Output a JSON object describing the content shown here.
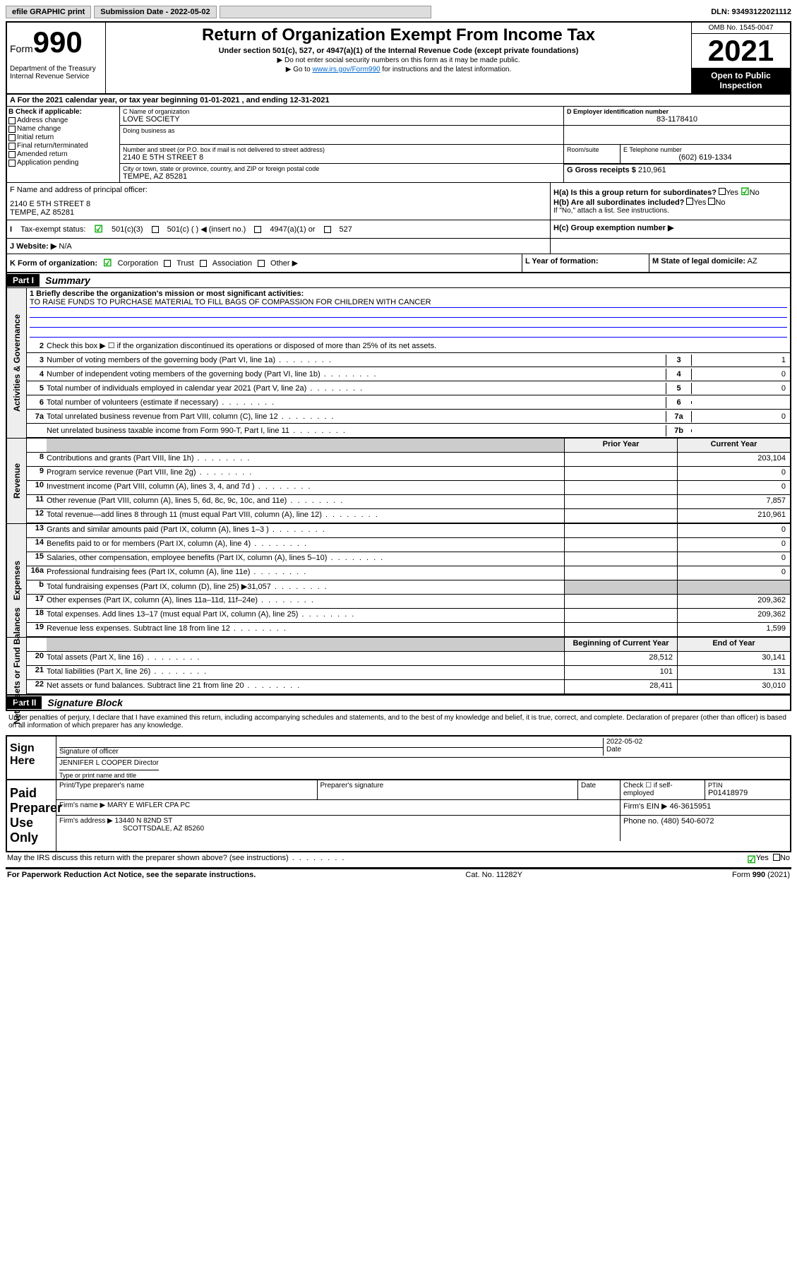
{
  "topbar": {
    "efile": "efile GRAPHIC print",
    "submission_label": "Submission Date - 2022-05-02",
    "dln": "DLN: 93493122021112"
  },
  "header": {
    "form_prefix": "Form",
    "form_number": "990",
    "dept": "Department of the Treasury Internal Revenue Service",
    "title": "Return of Organization Exempt From Income Tax",
    "subtitle": "Under section 501(c), 527, or 4947(a)(1) of the Internal Revenue Code (except private foundations)",
    "note1": "▶ Do not enter social security numbers on this form as it may be made public.",
    "note2_pre": "▶ Go to ",
    "note2_link": "www.irs.gov/Form990",
    "note2_post": " for instructions and the latest information.",
    "omb": "OMB No. 1545-0047",
    "year": "2021",
    "open": "Open to Public Inspection"
  },
  "line_a": {
    "text": "A For the 2021 calendar year, or tax year beginning 01-01-2021   , and ending 12-31-2021"
  },
  "section_b": {
    "label": "B Check if applicable:",
    "opts": [
      "Address change",
      "Name change",
      "Initial return",
      "Final return/terminated",
      "Amended return",
      "Application pending"
    ]
  },
  "section_c": {
    "name_label": "C Name of organization",
    "name": "LOVE SOCIETY",
    "dba_label": "Doing business as",
    "addr_label": "Number and street (or P.O. box if mail is not delivered to street address)",
    "room_label": "Room/suite",
    "addr": "2140 E 5TH STREET 8",
    "city_label": "City or town, state or province, country, and ZIP or foreign postal code",
    "city": "TEMPE, AZ  85281"
  },
  "section_d": {
    "label": "D Employer identification number",
    "val": "83-1178410"
  },
  "section_e": {
    "label": "E Telephone number",
    "val": "(602) 619-1334"
  },
  "section_g": {
    "label": "G Gross receipts $",
    "val": "210,961"
  },
  "section_f": {
    "label": "F  Name and address of principal officer:",
    "addr1": "2140 E 5TH STREET 8",
    "addr2": "TEMPE, AZ  85281"
  },
  "section_h": {
    "ha": "H(a)  Is this a group return for subordinates?",
    "ha_no": "No",
    "hb": "H(b)  Are all subordinates included?",
    "hb_note": "If \"No,\" attach a list. See instructions.",
    "hc": "H(c)  Group exemption number ▶"
  },
  "section_i": {
    "label": "Tax-exempt status:",
    "opt1": "501(c)(3)",
    "opt2": "501(c) (  ) ◀ (insert no.)",
    "opt3": "4947(a)(1) or",
    "opt4": "527"
  },
  "section_j": {
    "label": "J   Website: ▶",
    "val": "N/A"
  },
  "section_k": {
    "label": "K Form of organization:",
    "opts": [
      "Corporation",
      "Trust",
      "Association",
      "Other ▶"
    ]
  },
  "section_l": {
    "label": "L Year of formation:"
  },
  "section_m": {
    "label": "M State of legal domicile:",
    "val": "AZ"
  },
  "part1": {
    "hdr": "Part I",
    "title": "Summary",
    "side_labels": [
      "Activities & Governance",
      "Revenue",
      "Expenses",
      "Net Assets or Fund Balances"
    ],
    "line1_label": "1  Briefly describe the organization's mission or most significant activities:",
    "line1_val": "TO RAISE FUNDS TO PURCHASE MATERIAL TO FILL BAGS OF COMPASSION FOR CHILDREN WITH CANCER",
    "line2": "Check this box ▶ ☐  if the organization discontinued its operations or disposed of more than 25% of its net assets.",
    "rows_gov": [
      {
        "n": "3",
        "t": "Number of voting members of the governing body (Part VI, line 1a)",
        "box": "3",
        "v": "1"
      },
      {
        "n": "4",
        "t": "Number of independent voting members of the governing body (Part VI, line 1b)",
        "box": "4",
        "v": "0"
      },
      {
        "n": "5",
        "t": "Total number of individuals employed in calendar year 2021 (Part V, line 2a)",
        "box": "5",
        "v": "0"
      },
      {
        "n": "6",
        "t": "Total number of volunteers (estimate if necessary)",
        "box": "6",
        "v": ""
      },
      {
        "n": "7a",
        "t": "Total unrelated business revenue from Part VIII, column (C), line 12",
        "box": "7a",
        "v": "0"
      },
      {
        "n": "",
        "t": "Net unrelated business taxable income from Form 990-T, Part I, line 11",
        "box": "7b",
        "v": ""
      }
    ],
    "col_prior": "Prior Year",
    "col_curr": "Current Year",
    "rows_rev": [
      {
        "n": "8",
        "t": "Contributions and grants (Part VIII, line 1h)",
        "p": "",
        "c": "203,104"
      },
      {
        "n": "9",
        "t": "Program service revenue (Part VIII, line 2g)",
        "p": "",
        "c": "0"
      },
      {
        "n": "10",
        "t": "Investment income (Part VIII, column (A), lines 3, 4, and 7d )",
        "p": "",
        "c": "0"
      },
      {
        "n": "11",
        "t": "Other revenue (Part VIII, column (A), lines 5, 6d, 8c, 9c, 10c, and 11e)",
        "p": "",
        "c": "7,857"
      },
      {
        "n": "12",
        "t": "Total revenue—add lines 8 through 11 (must equal Part VIII, column (A), line 12)",
        "p": "",
        "c": "210,961"
      }
    ],
    "rows_exp": [
      {
        "n": "13",
        "t": "Grants and similar amounts paid (Part IX, column (A), lines 1–3 )",
        "p": "",
        "c": "0"
      },
      {
        "n": "14",
        "t": "Benefits paid to or for members (Part IX, column (A), line 4)",
        "p": "",
        "c": "0"
      },
      {
        "n": "15",
        "t": "Salaries, other compensation, employee benefits (Part IX, column (A), lines 5–10)",
        "p": "",
        "c": "0"
      },
      {
        "n": "16a",
        "t": "Professional fundraising fees (Part IX, column (A), line 11e)",
        "p": "",
        "c": "0"
      },
      {
        "n": "b",
        "t": "Total fundraising expenses (Part IX, column (D), line 25) ▶31,057",
        "p": "shaded",
        "c": "shaded"
      },
      {
        "n": "17",
        "t": "Other expenses (Part IX, column (A), lines 11a–11d, 11f–24e)",
        "p": "",
        "c": "209,362"
      },
      {
        "n": "18",
        "t": "Total expenses. Add lines 13–17 (must equal Part IX, column (A), line 25)",
        "p": "",
        "c": "209,362"
      },
      {
        "n": "19",
        "t": "Revenue less expenses. Subtract line 18 from line 12",
        "p": "",
        "c": "1,599"
      }
    ],
    "col_begin": "Beginning of Current Year",
    "col_end": "End of Year",
    "rows_net": [
      {
        "n": "20",
        "t": "Total assets (Part X, line 16)",
        "p": "28,512",
        "c": "30,141"
      },
      {
        "n": "21",
        "t": "Total liabilities (Part X, line 26)",
        "p": "101",
        "c": "131"
      },
      {
        "n": "22",
        "t": "Net assets or fund balances. Subtract line 21 from line 20",
        "p": "28,411",
        "c": "30,010"
      }
    ]
  },
  "part2": {
    "hdr": "Part II",
    "title": "Signature Block",
    "decl": "Under penalties of perjury, I declare that I have examined this return, including accompanying schedules and statements, and to the best of my knowledge and belief, it is true, correct, and complete. Declaration of preparer (other than officer) is based on all information of which preparer has any knowledge.",
    "sign_here": "Sign Here",
    "sig_officer": "Signature of officer",
    "sig_date": "2022-05-02",
    "date_lbl": "Date",
    "officer_name": "JENNIFER L COOPER  Director",
    "officer_lbl": "Type or print name and title",
    "paid": "Paid Preparer Use Only",
    "prep_name_lbl": "Print/Type preparer's name",
    "prep_sig_lbl": "Preparer's signature",
    "prep_date_lbl": "Date",
    "prep_check": "Check ☐ if self-employed",
    "ptin_lbl": "PTIN",
    "ptin": "P01418979",
    "firm_name_lbl": "Firm's name    ▶",
    "firm_name": "MARY E WIFLER CPA PC",
    "firm_ein_lbl": "Firm's EIN ▶",
    "firm_ein": "46-3615951",
    "firm_addr_lbl": "Firm's address ▶",
    "firm_addr1": "13440 N 82ND ST",
    "firm_addr2": "SCOTTSDALE, AZ  85260",
    "phone_lbl": "Phone no.",
    "phone": "(480) 540-6072",
    "discuss": "May the IRS discuss this return with the preparer shown above? (see instructions)",
    "yes": "Yes",
    "no": "No"
  },
  "footer": {
    "left": "For Paperwork Reduction Act Notice, see the separate instructions.",
    "mid": "Cat. No. 11282Y",
    "right": "Form 990 (2021)"
  }
}
